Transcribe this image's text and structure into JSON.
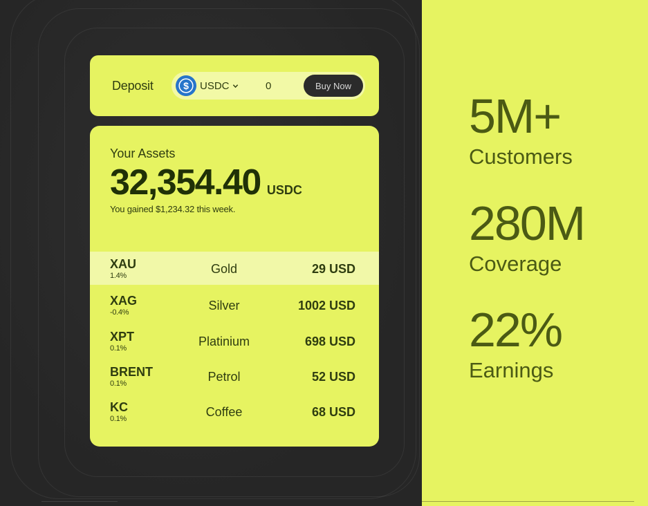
{
  "colors": {
    "accent": "#e6f361",
    "dark_background": "#2a2a2a",
    "text_dark": "#2f3d10",
    "usdc_blue": "#2775ca"
  },
  "deposit": {
    "label": "Deposit",
    "currency_icon": "usdc-icon",
    "currency": "USDC",
    "amount": "0",
    "buy_label": "Buy Now"
  },
  "assets": {
    "title": "Your Assets",
    "amount": "32,354.40",
    "unit": "USDC",
    "gain_text": "You gained $1,234.32 this week.",
    "rows": [
      {
        "symbol": "XAU",
        "change": "1.4%",
        "name": "Gold",
        "value": "29 USD"
      },
      {
        "symbol": "XAG",
        "change": "-0.4%",
        "name": "Silver",
        "value": "1002 USD"
      },
      {
        "symbol": "XPT",
        "change": "0.1%",
        "name": "Platinium",
        "value": "698 USD"
      },
      {
        "symbol": "BRENT",
        "change": "0.1%",
        "name": "Petrol",
        "value": "52 USD"
      },
      {
        "symbol": "KC",
        "change": "0.1%",
        "name": "Coffee",
        "value": "68 USD"
      }
    ]
  },
  "stats": [
    {
      "value": "5M+",
      "label": "Customers"
    },
    {
      "value": "280M",
      "label": "Coverage"
    },
    {
      "value": "22%",
      "label": "Earnings"
    }
  ]
}
